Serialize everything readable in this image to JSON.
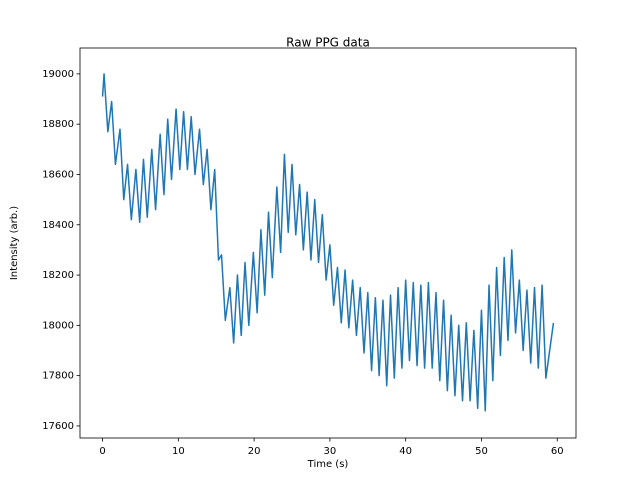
{
  "chart_data": {
    "type": "line",
    "title": "Raw PPG data",
    "x_label": "Time (s)",
    "y_label": "Intensity (arb.)",
    "xlim": [
      -2.975,
      62.475
    ],
    "ylim": [
      17552,
      19103
    ],
    "xticks": [
      0,
      10,
      20,
      30,
      40,
      50,
      60
    ],
    "yticks": [
      17600,
      17800,
      18000,
      18200,
      18400,
      18600,
      18800,
      19000
    ],
    "grid": false,
    "series": [
      {
        "color": "#1f77b4",
        "x": [
          0,
          0.2,
          0.7,
          1.2,
          1.7,
          2.3,
          2.8,
          3.3,
          3.8,
          4.4,
          4.9,
          5.4,
          5.9,
          6.5,
          7.0,
          7.6,
          8.1,
          8.6,
          9.1,
          9.7,
          10.2,
          10.7,
          11.2,
          11.7,
          12.2,
          12.8,
          13.3,
          13.8,
          14.3,
          14.8,
          15.3,
          15.7,
          16.2,
          16.8,
          17.3,
          17.8,
          18.3,
          18.8,
          19.3,
          19.9,
          20.4,
          20.9,
          21.4,
          21.9,
          22.4,
          23,
          23.5,
          24,
          24.5,
          25,
          25.5,
          26,
          26.5,
          27,
          27.5,
          28,
          28.5,
          29,
          29.5,
          30,
          30.5,
          31,
          31.5,
          32,
          32.5,
          33,
          33.5,
          34,
          34.5,
          35,
          35.5,
          36,
          36.5,
          37,
          37.5,
          38,
          38.5,
          39,
          39.5,
          40,
          40.5,
          41,
          41.5,
          42,
          42.5,
          43,
          43.5,
          44,
          44.5,
          45,
          45.5,
          46,
          46.5,
          47,
          47.5,
          48,
          48.5,
          49,
          49.5,
          50,
          50.5,
          51,
          51.5,
          52,
          52.5,
          53,
          53.5,
          54,
          54.5,
          55,
          55.5,
          56,
          56.5,
          57,
          57.5,
          58,
          58.5,
          59.5
        ],
        "values": [
          18910,
          19000,
          18770,
          18890,
          18640,
          18780,
          18500,
          18640,
          18420,
          18620,
          18410,
          18660,
          18430,
          18700,
          18460,
          18760,
          18520,
          18820,
          18580,
          18860,
          18620,
          18850,
          18620,
          18830,
          18600,
          18780,
          18560,
          18700,
          18460,
          18620,
          18260,
          18280,
          18020,
          18150,
          17930,
          18200,
          17960,
          18250,
          18000,
          18290,
          18050,
          18380,
          18120,
          18450,
          18190,
          18550,
          18290,
          18680,
          18370,
          18640,
          18360,
          18560,
          18300,
          18530,
          18260,
          18500,
          18250,
          18440,
          18180,
          18320,
          18080,
          18230,
          18010,
          18220,
          17990,
          18180,
          17960,
          18150,
          17890,
          18130,
          17820,
          18110,
          17800,
          18100,
          17760,
          18120,
          17790,
          18150,
          17830,
          18180,
          17860,
          18170,
          17840,
          18160,
          17830,
          18170,
          17830,
          18130,
          17780,
          18100,
          17740,
          18040,
          17720,
          18000,
          17700,
          18010,
          17700,
          17980,
          17670,
          18060,
          17660,
          18160,
          17780,
          18230,
          17880,
          18270,
          17940,
          18300,
          17970,
          18180,
          17900,
          18140,
          17850,
          18150,
          17830,
          18160,
          17790,
          18010
        ]
      }
    ]
  }
}
